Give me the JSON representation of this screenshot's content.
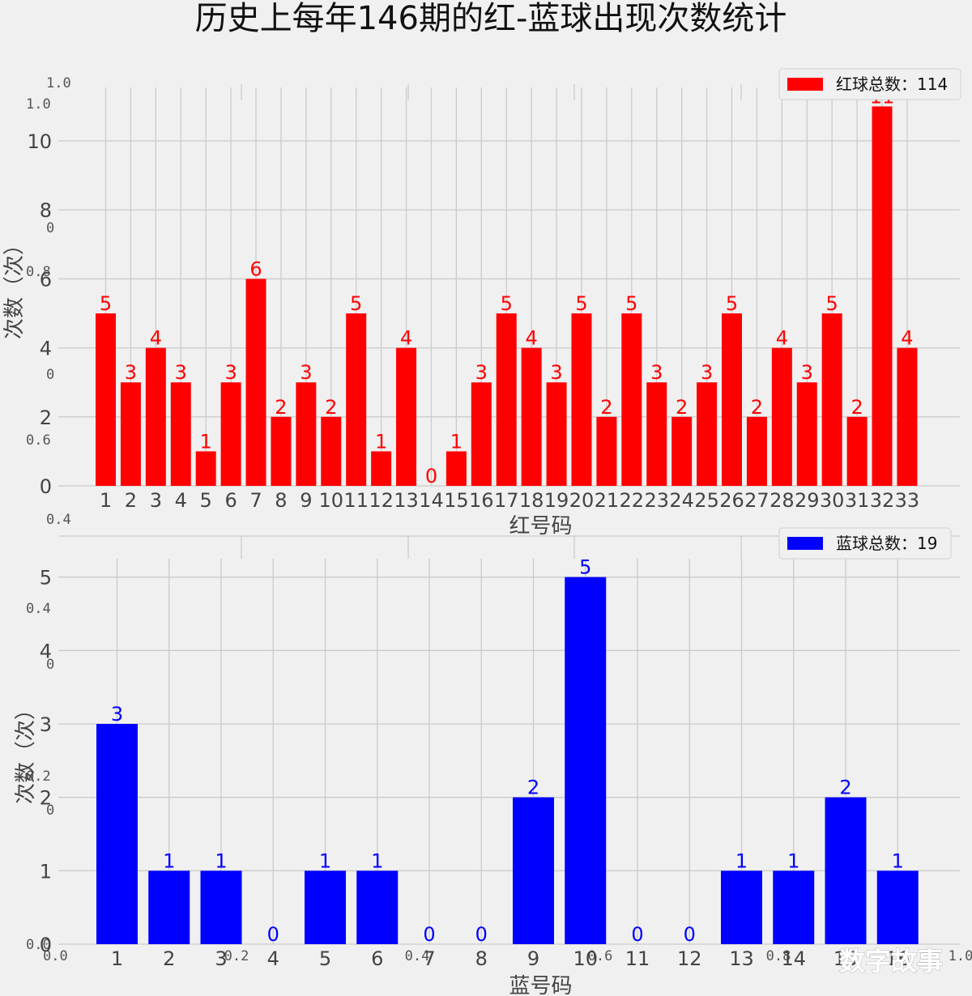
{
  "title": "历史上每年146期的红-蓝球出现次数统计",
  "watermark": "数字故事",
  "colors": {
    "red": "#ff0000",
    "blue": "#0000ff",
    "grid": "#cbcbcb",
    "background": "#f0f0f0"
  },
  "ghost_axis_ticks": [
    "1.0",
    "1.0",
    "0",
    "0.8",
    "0",
    "0.6",
    "0.4",
    "0.4",
    "0",
    "0.2",
    "0",
    "0.0",
    "0.0",
    "0.2",
    "0.4",
    "0.6",
    "0.8",
    "1.0"
  ],
  "chart_data": [
    {
      "type": "bar",
      "categories": [
        "1",
        "2",
        "3",
        "4",
        "5",
        "6",
        "7",
        "8",
        "9",
        "10",
        "11",
        "12",
        "13",
        "14",
        "15",
        "16",
        "17",
        "18",
        "19",
        "20",
        "21",
        "22",
        "23",
        "24",
        "25",
        "26",
        "27",
        "28",
        "29",
        "30",
        "31",
        "32",
        "33"
      ],
      "series": [
        {
          "name": "红球总数：114",
          "color": "#ff0000",
          "values": [
            5,
            3,
            4,
            3,
            1,
            3,
            6,
            2,
            3,
            2,
            5,
            1,
            4,
            0,
            1,
            3,
            5,
            4,
            3,
            5,
            2,
            5,
            3,
            2,
            3,
            5,
            2,
            4,
            3,
            5,
            2,
            11,
            4
          ]
        }
      ],
      "xlabel": "红号码",
      "ylabel": "次数（次）",
      "yticks": [
        "0",
        "2",
        "4",
        "6",
        "8",
        "10"
      ],
      "ylim": [
        0,
        11.55
      ],
      "grid": true,
      "legend": "top-right"
    },
    {
      "type": "bar",
      "categories": [
        "1",
        "2",
        "3",
        "4",
        "5",
        "6",
        "7",
        "8",
        "9",
        "10",
        "11",
        "12",
        "13",
        "14",
        "15",
        "16"
      ],
      "series": [
        {
          "name": "蓝球总数：19",
          "color": "#0000ff",
          "values": [
            3,
            1,
            1,
            0,
            1,
            1,
            0,
            0,
            2,
            5,
            0,
            0,
            1,
            1,
            2,
            1
          ]
        }
      ],
      "xlabel": "蓝号码",
      "ylabel": "次数（次）",
      "yticks": [
        "0",
        "1",
        "2",
        "3",
        "4",
        "5"
      ],
      "ylim": [
        0,
        5.25
      ],
      "grid": true,
      "legend": "top-right"
    }
  ]
}
